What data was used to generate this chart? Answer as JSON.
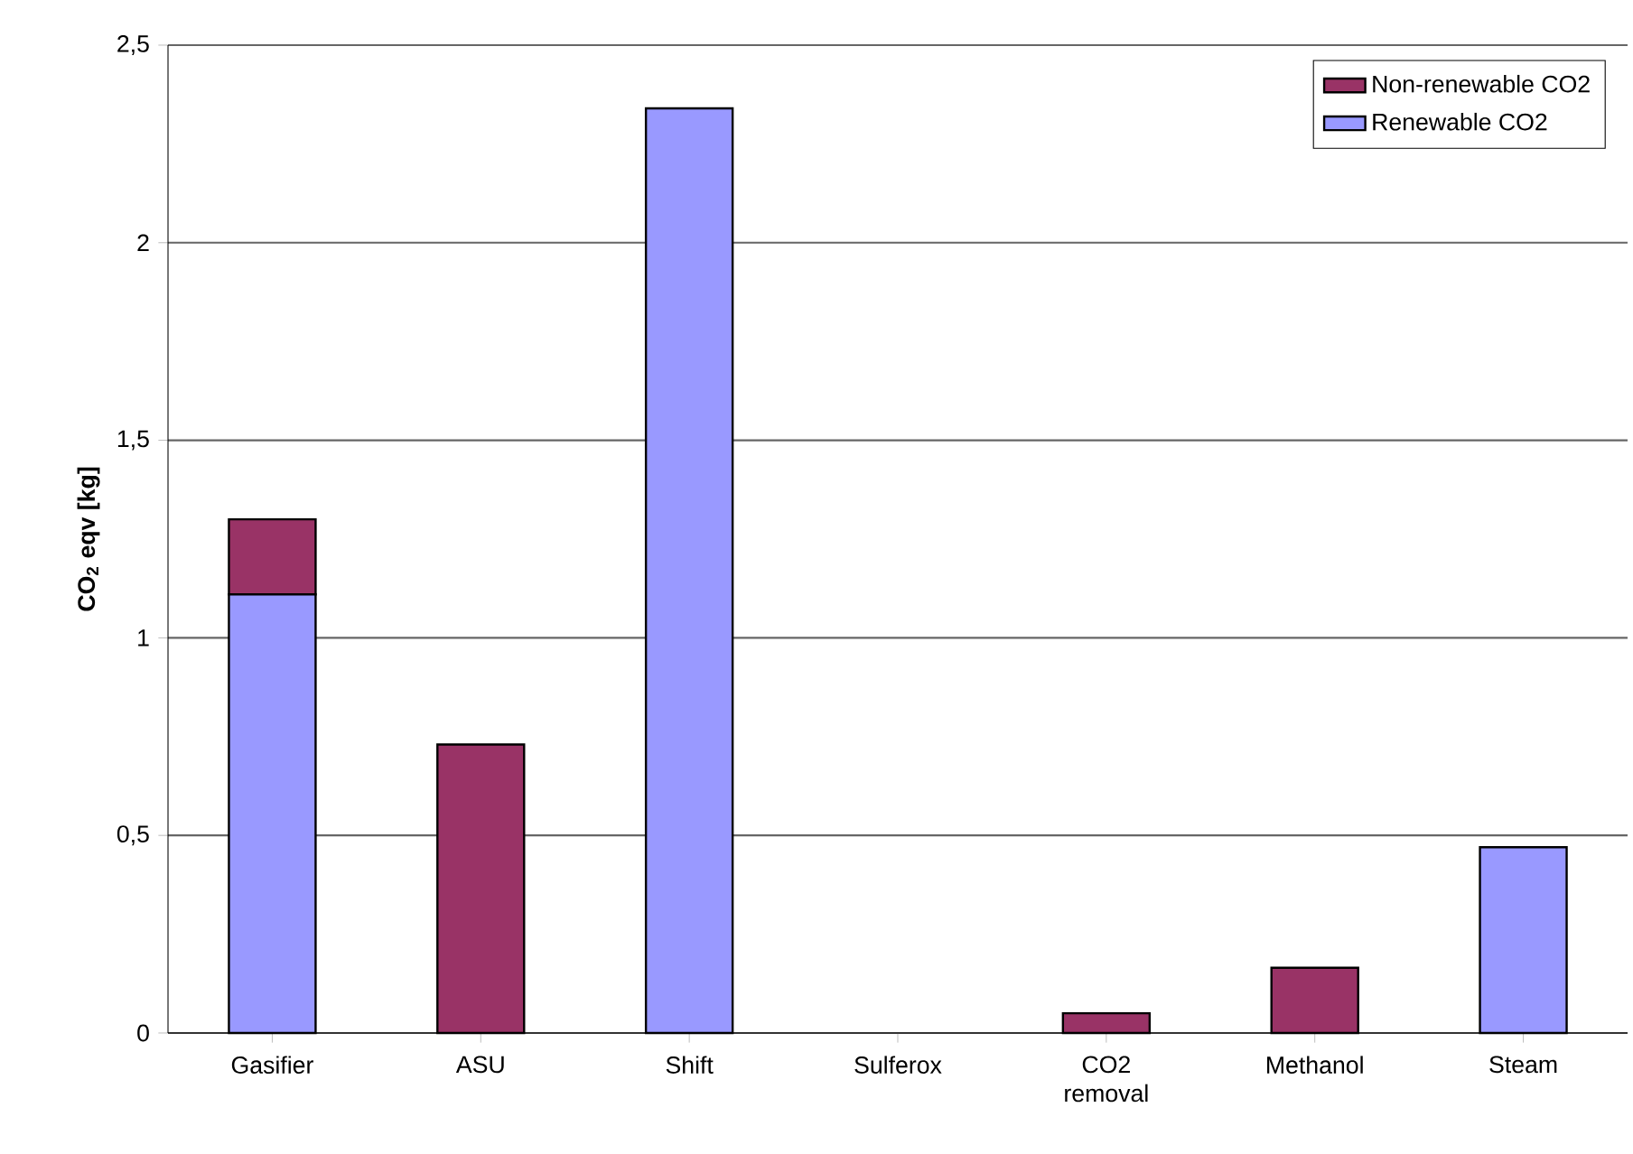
{
  "chart_data": {
    "type": "bar",
    "stacked": true,
    "ylabel": "CO$_{2}$ eqv [kg]",
    "categories": [
      "Gasifier",
      "ASU",
      "Shift",
      "Sulferox",
      "CO2 removal",
      "Methanol",
      "Steam"
    ],
    "series": [
      {
        "name": "Renewable CO2",
        "color": "#9999ff",
        "values": [
          1.11,
          0,
          2.34,
          0,
          0,
          0,
          0.47
        ]
      },
      {
        "name": "Non-renewable CO2",
        "color": "#993366",
        "values": [
          0.19,
          0.73,
          0,
          0,
          0.05,
          0.165,
          0
        ]
      }
    ],
    "ylim": [
      0,
      2.5
    ],
    "yticks": [
      0,
      {
        "value": 0.5,
        "label": "0,5"
      },
      1,
      {
        "value": 1.5,
        "label": "1,5"
      },
      2,
      {
        "value": 2.5,
        "label": "2,5"
      }
    ],
    "grid": "y",
    "legend": "top right"
  }
}
